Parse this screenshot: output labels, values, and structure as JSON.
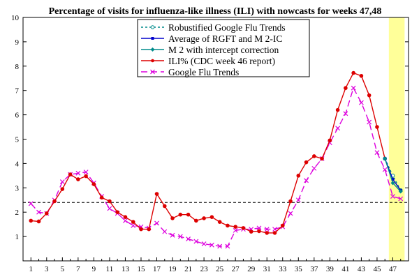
{
  "chart_data": {
    "type": "line",
    "title": "Percentage of visits for influenza-like illness (ILI) with nowcasts for weeks 47,48",
    "xlabel": "",
    "ylabel": "",
    "xlim": [
      0,
      49
    ],
    "ylim": [
      0,
      10
    ],
    "x_ticks": [
      1,
      3,
      5,
      7,
      9,
      11,
      13,
      15,
      17,
      19,
      21,
      23,
      25,
      27,
      29,
      31,
      33,
      35,
      37,
      39,
      41,
      43,
      45,
      47
    ],
    "y_ticks": [
      1,
      2,
      3,
      4,
      5,
      6,
      7,
      8,
      9,
      10
    ],
    "grid": false,
    "highlight_region": {
      "x_from": 46.5,
      "x_to": 48.5,
      "color": "#ffff99"
    },
    "reference_line": {
      "y": 2.4,
      "style": "dashed",
      "color": "#000000"
    },
    "legend_position": "top-center",
    "series": [
      {
        "name": "Robustified Google Flu Trends",
        "color": "#008b8b",
        "marker": "circle-open",
        "dash": "3,3",
        "x": [
          46,
          47,
          48
        ],
        "y": [
          4.2,
          3.5,
          2.9
        ]
      },
      {
        "name": "Average of RGFT and M 2-IC",
        "color": "#0000cc",
        "marker": "square",
        "dash": "",
        "x": [
          46,
          47,
          48
        ],
        "y": [
          4.2,
          3.35,
          2.9
        ]
      },
      {
        "name": "M 2 with intercept correction",
        "color": "#008b8b",
        "marker": "diamond",
        "dash": "",
        "x": [
          46,
          47,
          48
        ],
        "y": [
          4.2,
          3.2,
          2.85
        ]
      },
      {
        "name": "ILI% (CDC week 46 report)",
        "color": "#dd0000",
        "marker": "dot",
        "dash": "",
        "x": [
          1,
          2,
          3,
          4,
          5,
          6,
          7,
          8,
          9,
          10,
          11,
          12,
          13,
          14,
          15,
          16,
          17,
          18,
          19,
          20,
          21,
          22,
          23,
          24,
          25,
          26,
          27,
          28,
          29,
          30,
          31,
          32,
          33,
          34,
          35,
          36,
          37,
          38,
          39,
          40,
          41,
          42,
          43,
          44,
          45,
          46
        ],
        "y": [
          1.65,
          1.62,
          1.95,
          2.45,
          2.95,
          3.55,
          3.35,
          3.48,
          3.15,
          2.6,
          2.45,
          2.0,
          1.8,
          1.6,
          1.3,
          1.3,
          2.75,
          2.25,
          1.75,
          1.9,
          1.9,
          1.65,
          1.75,
          1.8,
          1.6,
          1.45,
          1.4,
          1.35,
          1.2,
          1.22,
          1.15,
          1.15,
          1.45,
          2.45,
          3.5,
          4.05,
          4.3,
          4.2,
          4.95,
          6.2,
          7.1,
          7.72,
          7.6,
          6.8,
          5.5,
          4.2
        ]
      },
      {
        "name": "Google Flu Trends",
        "color": "#dd00dd",
        "marker": "x",
        "dash": "9,5",
        "x": [
          1,
          2,
          3,
          4,
          5,
          6,
          7,
          8,
          9,
          10,
          11,
          12,
          13,
          14,
          15,
          16,
          17,
          18,
          19,
          20,
          21,
          22,
          23,
          24,
          25,
          26,
          27,
          28,
          29,
          30,
          31,
          32,
          33,
          34,
          35,
          36,
          37,
          38,
          39,
          40,
          41,
          42,
          43,
          44,
          45,
          46,
          47,
          48
        ],
        "y": [
          2.35,
          2.0,
          1.95,
          2.5,
          3.25,
          3.55,
          3.6,
          3.65,
          3.2,
          2.65,
          2.15,
          1.95,
          1.65,
          1.45,
          1.4,
          1.35,
          1.55,
          1.2,
          1.05,
          1.0,
          0.9,
          0.8,
          0.7,
          0.65,
          0.6,
          0.6,
          1.25,
          1.3,
          1.3,
          1.35,
          1.3,
          1.3,
          1.4,
          1.95,
          2.5,
          3.3,
          3.8,
          4.2,
          4.85,
          5.45,
          6.05,
          7.1,
          6.5,
          5.7,
          4.45,
          3.75,
          2.65,
          2.55
        ]
      }
    ]
  }
}
